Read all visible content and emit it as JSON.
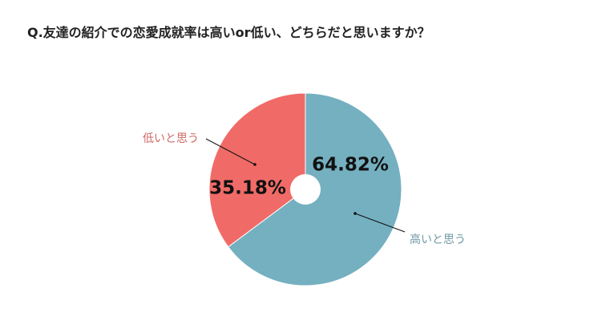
{
  "chart_data": {
    "type": "pie",
    "title": "Q.友達の紹介での恋愛成就率は高いor低い、どちらだと思いますか？",
    "categories": [
      "高いと思う",
      "低いと思う"
    ],
    "values": [
      64.82,
      35.18
    ],
    "value_labels": [
      "64.82%",
      "35.18%"
    ],
    "colors": [
      "#74b0c0",
      "#f06b67"
    ],
    "label_colors": [
      "#6f9aa6",
      "#d06a66"
    ],
    "donut_hole": true,
    "start": "top, clockwise"
  }
}
